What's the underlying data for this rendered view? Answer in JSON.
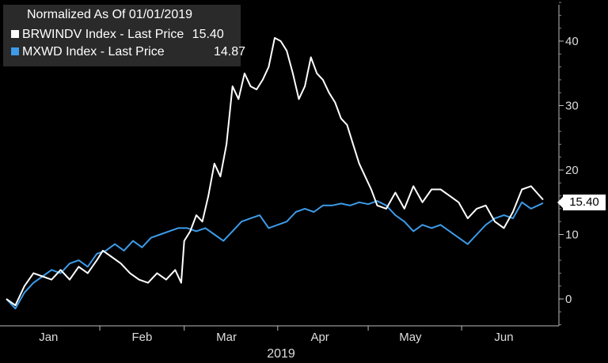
{
  "chart_data": {
    "type": "line",
    "title": "Normalized As Of 01/01/2019",
    "xlabel": "2019",
    "ylabel": "",
    "ylim": [
      -4,
      46
    ],
    "xlim": [
      "2019-01-01",
      "2019-06-28"
    ],
    "xticks": [
      {
        "date": "2019-01-15",
        "label": "Jan"
      },
      {
        "date": "2019-02-15",
        "label": "Feb"
      },
      {
        "date": "2019-03-15",
        "label": "Mar"
      },
      {
        "date": "2019-04-15",
        "label": "Apr"
      },
      {
        "date": "2019-05-15",
        "label": "May"
      },
      {
        "date": "2019-06-15",
        "label": "Jun"
      }
    ],
    "yticks": [
      0,
      10,
      20,
      30,
      40
    ],
    "grid": false,
    "legend": "top-left",
    "series": [
      {
        "name": "BRWINDV Index - Last Price",
        "last_value": "15.40",
        "color": "#ffffff",
        "points": [
          [
            "2019-01-01",
            0
          ],
          [
            "2019-01-04",
            -1
          ],
          [
            "2019-01-07",
            2
          ],
          [
            "2019-01-10",
            4
          ],
          [
            "2019-01-13",
            3.5
          ],
          [
            "2019-01-16",
            3
          ],
          [
            "2019-01-19",
            4.5
          ],
          [
            "2019-01-22",
            3
          ],
          [
            "2019-01-25",
            5
          ],
          [
            "2019-01-28",
            4
          ],
          [
            "2019-01-31",
            6
          ],
          [
            "2019-02-02",
            7.5
          ],
          [
            "2019-02-05",
            6.5
          ],
          [
            "2019-02-08",
            5.5
          ],
          [
            "2019-02-11",
            4
          ],
          [
            "2019-02-14",
            3
          ],
          [
            "2019-02-17",
            2.5
          ],
          [
            "2019-02-20",
            4
          ],
          [
            "2019-02-23",
            3
          ],
          [
            "2019-02-26",
            4.5
          ],
          [
            "2019-02-28",
            2.5
          ],
          [
            "2019-03-01",
            9
          ],
          [
            "2019-03-03",
            10.5
          ],
          [
            "2019-03-05",
            13
          ],
          [
            "2019-03-07",
            12
          ],
          [
            "2019-03-09",
            16
          ],
          [
            "2019-03-11",
            21
          ],
          [
            "2019-03-13",
            19
          ],
          [
            "2019-03-15",
            24
          ],
          [
            "2019-03-17",
            33
          ],
          [
            "2019-03-19",
            31
          ],
          [
            "2019-03-21",
            35
          ],
          [
            "2019-03-23",
            33
          ],
          [
            "2019-03-25",
            32.5
          ],
          [
            "2019-03-27",
            34
          ],
          [
            "2019-03-29",
            36
          ],
          [
            "2019-03-31",
            40.5
          ],
          [
            "2019-04-02",
            40
          ],
          [
            "2019-04-04",
            38.5
          ],
          [
            "2019-04-06",
            35
          ],
          [
            "2019-04-08",
            31
          ],
          [
            "2019-04-10",
            33
          ],
          [
            "2019-04-12",
            37.5
          ],
          [
            "2019-04-14",
            35
          ],
          [
            "2019-04-16",
            34
          ],
          [
            "2019-04-18",
            32
          ],
          [
            "2019-04-20",
            30.5
          ],
          [
            "2019-04-22",
            28
          ],
          [
            "2019-04-24",
            27
          ],
          [
            "2019-04-26",
            24
          ],
          [
            "2019-04-28",
            21
          ],
          [
            "2019-04-30",
            19
          ],
          [
            "2019-05-02",
            17
          ],
          [
            "2019-05-04",
            14.5
          ],
          [
            "2019-05-07",
            14
          ],
          [
            "2019-05-10",
            16.5
          ],
          [
            "2019-05-13",
            14
          ],
          [
            "2019-05-16",
            17.5
          ],
          [
            "2019-05-19",
            15
          ],
          [
            "2019-05-22",
            17
          ],
          [
            "2019-05-25",
            17
          ],
          [
            "2019-05-28",
            16
          ],
          [
            "2019-05-31",
            15
          ],
          [
            "2019-06-03",
            12.5
          ],
          [
            "2019-06-06",
            14
          ],
          [
            "2019-06-09",
            14.5
          ],
          [
            "2019-06-12",
            12
          ],
          [
            "2019-06-15",
            11
          ],
          [
            "2019-06-18",
            13.5
          ],
          [
            "2019-06-21",
            17
          ],
          [
            "2019-06-24",
            17.5
          ],
          [
            "2019-06-28",
            15.4
          ]
        ]
      },
      {
        "name": "MXWD Index - Last Price",
        "last_value": "14.87",
        "color": "#3d9be9",
        "points": [
          [
            "2019-01-01",
            0
          ],
          [
            "2019-01-04",
            -1.5
          ],
          [
            "2019-01-07",
            1
          ],
          [
            "2019-01-10",
            2.5
          ],
          [
            "2019-01-13",
            3.5
          ],
          [
            "2019-01-16",
            4.5
          ],
          [
            "2019-01-19",
            4
          ],
          [
            "2019-01-22",
            5.5
          ],
          [
            "2019-01-25",
            6
          ],
          [
            "2019-01-28",
            5
          ],
          [
            "2019-01-31",
            7
          ],
          [
            "2019-02-03",
            7.5
          ],
          [
            "2019-02-06",
            8.5
          ],
          [
            "2019-02-09",
            7.5
          ],
          [
            "2019-02-12",
            9
          ],
          [
            "2019-02-15",
            8
          ],
          [
            "2019-02-18",
            9.5
          ],
          [
            "2019-02-21",
            10
          ],
          [
            "2019-02-24",
            10.5
          ],
          [
            "2019-02-27",
            11
          ],
          [
            "2019-03-02",
            11
          ],
          [
            "2019-03-05",
            10.5
          ],
          [
            "2019-03-08",
            11
          ],
          [
            "2019-03-11",
            10
          ],
          [
            "2019-03-14",
            9
          ],
          [
            "2019-03-17",
            10.5
          ],
          [
            "2019-03-20",
            12
          ],
          [
            "2019-03-23",
            12.5
          ],
          [
            "2019-03-26",
            13
          ],
          [
            "2019-03-29",
            11
          ],
          [
            "2019-04-01",
            11.5
          ],
          [
            "2019-04-04",
            12
          ],
          [
            "2019-04-07",
            13.5
          ],
          [
            "2019-04-10",
            14
          ],
          [
            "2019-04-13",
            13.5
          ],
          [
            "2019-04-16",
            14.5
          ],
          [
            "2019-04-19",
            14.5
          ],
          [
            "2019-04-22",
            14.8
          ],
          [
            "2019-04-25",
            14.5
          ],
          [
            "2019-04-28",
            15
          ],
          [
            "2019-05-01",
            14.7
          ],
          [
            "2019-05-04",
            15.2
          ],
          [
            "2019-05-07",
            14.5
          ],
          [
            "2019-05-10",
            13
          ],
          [
            "2019-05-13",
            12
          ],
          [
            "2019-05-16",
            10.5
          ],
          [
            "2019-05-19",
            11.5
          ],
          [
            "2019-05-22",
            11
          ],
          [
            "2019-05-25",
            11.5
          ],
          [
            "2019-05-28",
            10.5
          ],
          [
            "2019-05-31",
            9.5
          ],
          [
            "2019-06-03",
            8.5
          ],
          [
            "2019-06-06",
            10
          ],
          [
            "2019-06-09",
            11.5
          ],
          [
            "2019-06-12",
            12.5
          ],
          [
            "2019-06-15",
            13
          ],
          [
            "2019-06-18",
            12.5
          ],
          [
            "2019-06-21",
            15
          ],
          [
            "2019-06-24",
            14
          ],
          [
            "2019-06-28",
            14.87
          ]
        ]
      }
    ]
  }
}
